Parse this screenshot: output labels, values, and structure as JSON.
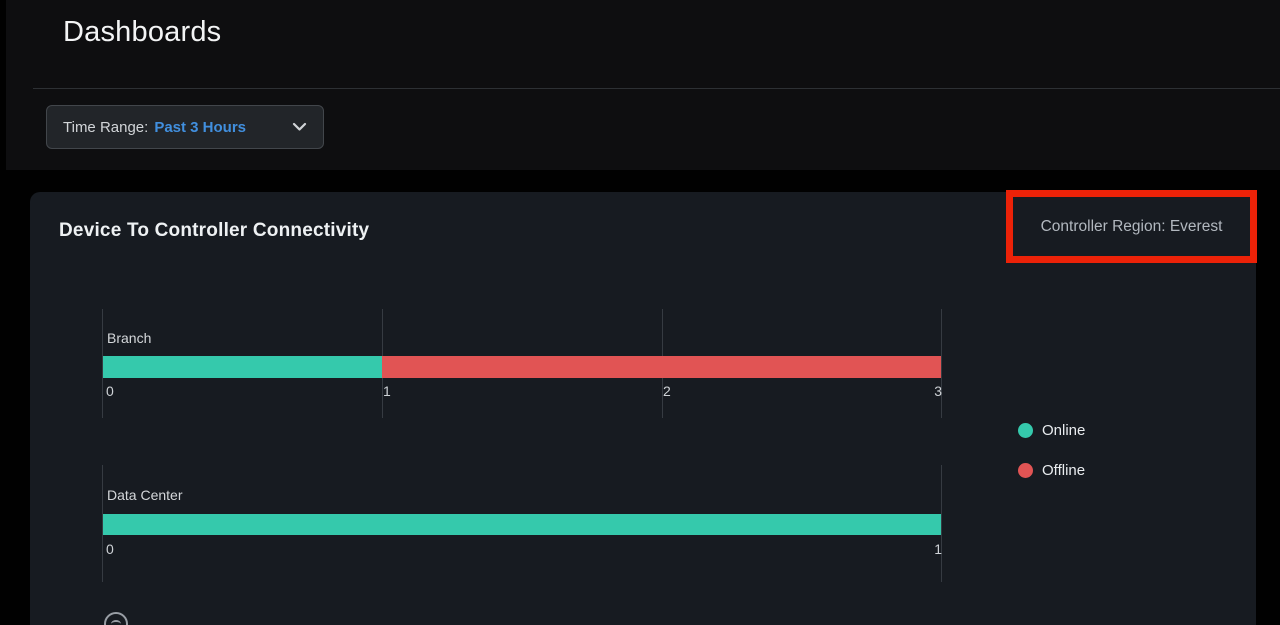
{
  "page": {
    "title": "Dashboards"
  },
  "toolbar": {
    "time_range_label": "Time Range:",
    "time_range_value": "Past 3 Hours",
    "chevron_icon": "chevron-down-icon"
  },
  "card": {
    "title": "Device To Controller Connectivity",
    "region_label": "Controller Region: Everest"
  },
  "colors": {
    "online": "#35c9ac",
    "offline": "#e15454",
    "time_range_value": "#418fde",
    "annotation": "#ec2208",
    "card_background": "#171b21",
    "page_background": "#010101"
  },
  "chart_data": {
    "type": "bar",
    "orientation": "horizontal",
    "stacked": true,
    "title": "Device To Controller Connectivity",
    "categories": [
      "Branch",
      "Data Center"
    ],
    "series": [
      {
        "name": "Online",
        "color": "#35c9ac",
        "values": [
          1,
          1
        ]
      },
      {
        "name": "Offline",
        "color": "#e15454",
        "values": [
          2,
          0
        ]
      }
    ],
    "grid": true,
    "legend_position": "right",
    "rows": [
      {
        "category": "Branch",
        "online": 1,
        "offline": 2,
        "xmax": 3,
        "ticks": [
          "0",
          "1",
          "2",
          "3"
        ]
      },
      {
        "category": "Data Center",
        "online": 1,
        "offline": 0,
        "xmax": 1,
        "ticks": [
          "0",
          "1"
        ]
      }
    ]
  },
  "legend": {
    "items": [
      {
        "label": "Online",
        "color": "#35c9ac"
      },
      {
        "label": "Offline",
        "color": "#e15454"
      }
    ]
  }
}
